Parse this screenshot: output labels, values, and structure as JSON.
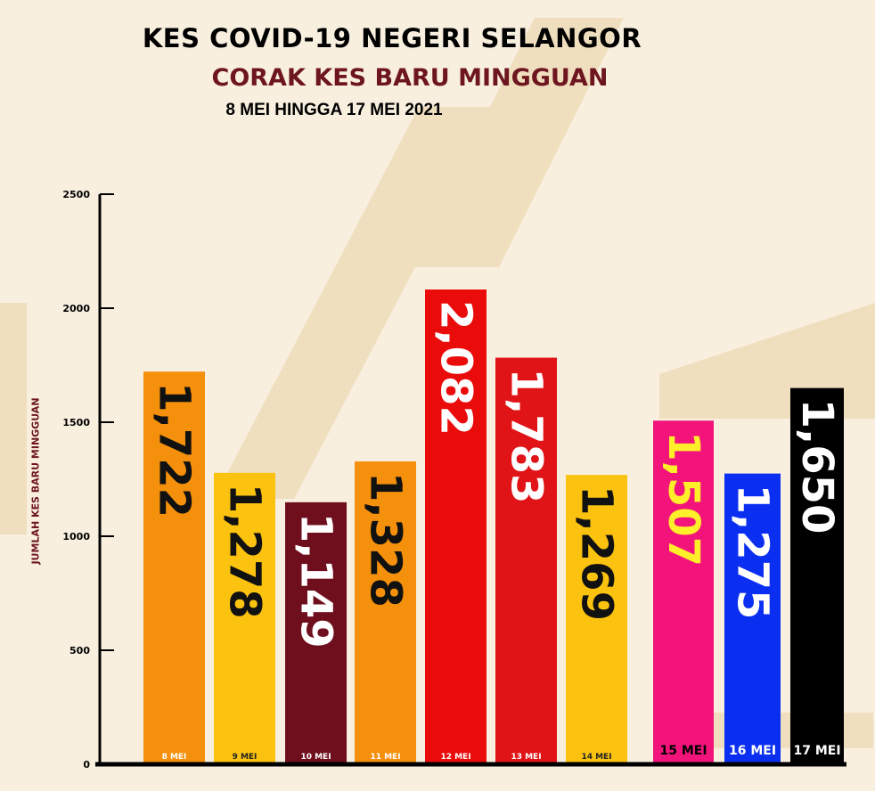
{
  "chart_data": {
    "type": "bar",
    "title": "KES COVID-19 NEGERI SELANGOR",
    "subtitle": "CORAK KES BARU MINGGUAN",
    "date_range": "8 MEI HINGGA 17 MEI 2021",
    "ylabel": "JUMLAH KES BARU MINGGUAN",
    "xlabel": "",
    "ylim": [
      0,
      2500
    ],
    "yticks": [
      "0",
      "500",
      "1000",
      "1500",
      "2000",
      "2500"
    ],
    "grid": false,
    "categories": [
      "8 MEI",
      "9 MEI",
      "10 MEI",
      "11 MEI",
      "12 MEI",
      "13 MEI",
      "14 MEI",
      "15 MEI",
      "16 MEI",
      "17 MEI"
    ],
    "values": [
      1722,
      1278,
      1149,
      1328,
      2082,
      1783,
      1269,
      1507,
      1275,
      1650
    ],
    "value_labels": [
      "1,722",
      "1,278",
      "1,149",
      "1,328",
      "2,082",
      "1,783",
      "1,269",
      "1,507",
      "1,275",
      "1,650"
    ],
    "bar_colors": [
      "#f5900c",
      "#fbc20f",
      "#6f0f1d",
      "#f5900c",
      "#ea0b0b",
      "#e01317",
      "#fbc20f",
      "#f3147b",
      "#0b2ff0",
      "#000000"
    ],
    "label_colors": [
      "#111111",
      "#111111",
      "#ffffff",
      "#111111",
      "#ffffff",
      "#ffffff",
      "#111111",
      "#ffef2a",
      "#ffffff",
      "#ffffff"
    ]
  }
}
